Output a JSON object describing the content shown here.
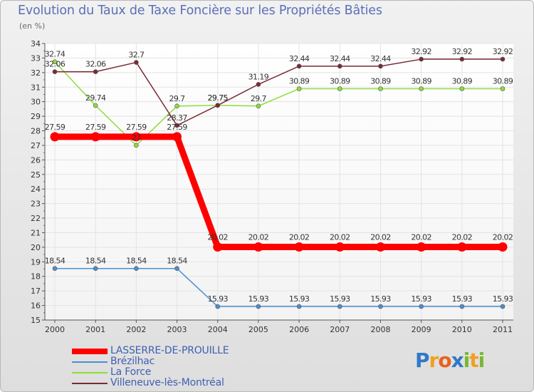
{
  "title": "Evolution du Taux de Taxe Foncière sur les Propriétés Bâties",
  "subtitle": "(en %)",
  "logo": {
    "letters": [
      "P",
      "r",
      "o",
      "x",
      "i",
      "t",
      "i"
    ],
    "colors": [
      "#2f79c7",
      "#f0a020",
      "#e8621a",
      "#2f79c7",
      "#79b832",
      "#f0a020",
      "#79b832"
    ]
  },
  "chart_data": {
    "type": "line",
    "title": "Evolution du Taux de Taxe Foncière sur les Propriétés Bâties",
    "ylabel": "(en %)",
    "xlabel": "",
    "ylim": [
      15,
      34
    ],
    "yticks": [
      "15",
      "16",
      "17",
      "18",
      "19",
      "20",
      "21",
      "22",
      "23",
      "24",
      "25",
      "26",
      "27",
      "28",
      "29",
      "30",
      "31",
      "32",
      "33",
      "34"
    ],
    "categories": [
      "2000",
      "2001",
      "2002",
      "2003",
      "2004",
      "2005",
      "2006",
      "2007",
      "2008",
      "2009",
      "2010",
      "2011"
    ],
    "series": [
      {
        "name": "LASSERRE-DE-PROUILLE",
        "color": "#ff0000",
        "values": [
          27.59,
          27.59,
          27.59,
          27.59,
          20.02,
          20.02,
          20.02,
          20.02,
          20.02,
          20.02,
          20.02,
          20.02
        ],
        "labels": [
          "27.59",
          "27.59",
          "27.59",
          "27.59",
          "20.02",
          "20.02",
          "20.02",
          "20.02",
          "20.02",
          "20.02",
          "20.02",
          "20.02"
        ]
      },
      {
        "name": "Brézilhac",
        "color": "#4a8fcf",
        "values": [
          18.54,
          18.54,
          18.54,
          18.54,
          15.93,
          15.93,
          15.93,
          15.93,
          15.93,
          15.93,
          15.93,
          15.93
        ],
        "labels": [
          "18.54",
          "18.54",
          "18.54",
          "18.54",
          "15.93",
          "15.93",
          "15.93",
          "15.93",
          "15.93",
          "15.93",
          "15.93",
          "15.93"
        ]
      },
      {
        "name": "La Force",
        "color": "#8fdc3a",
        "values": [
          32.74,
          29.74,
          27.0,
          29.7,
          29.75,
          29.7,
          30.89,
          30.89,
          30.89,
          30.89,
          30.89,
          30.89
        ],
        "labels": [
          "32.74",
          "29.74",
          "27",
          "29.7",
          "29.75",
          "29.7",
          "30.89",
          "30.89",
          "30.89",
          "30.89",
          "30.89",
          "30.89"
        ]
      },
      {
        "name": "Villeneuve-lès-Montréal",
        "color": "#7a2a36",
        "values": [
          32.06,
          32.06,
          32.7,
          28.37,
          29.75,
          31.19,
          32.44,
          32.44,
          32.44,
          32.92,
          32.92,
          32.92
        ],
        "labels": [
          "32.06",
          "32.06",
          "32.7",
          "28.37",
          "29.75",
          "31.19",
          "32.44",
          "32.44",
          "32.44",
          "32.92",
          "32.92",
          "32.92"
        ]
      }
    ],
    "legend_position": "bottom-left",
    "grid": true
  }
}
